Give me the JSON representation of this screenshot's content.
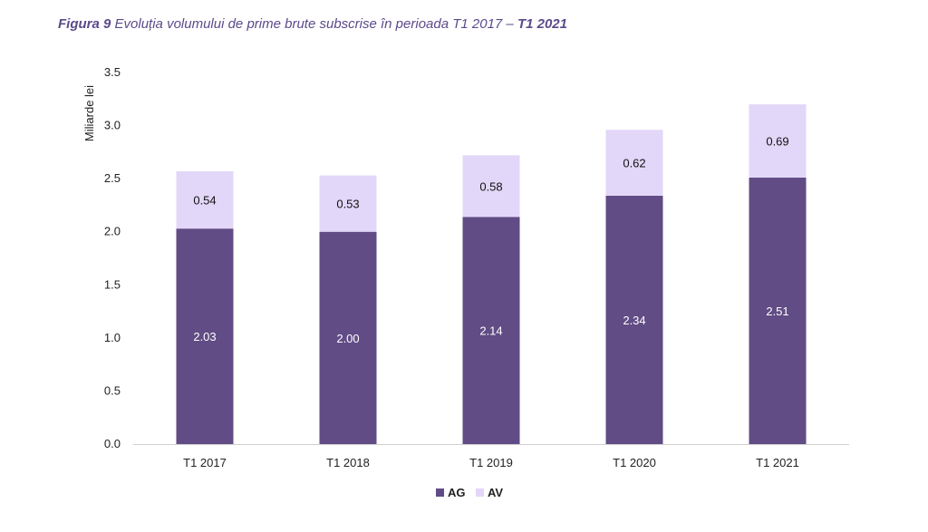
{
  "caption": {
    "figure_label": "Figura 9",
    "text_part1": "Evoluția volumului de prime brute subscrise în perioada T1 2017 –",
    "text_part2": "T1 2021"
  },
  "chart_data": {
    "type": "bar",
    "stacked": true,
    "title": "Figura 9 Evoluția volumului de prime brute subscrise în perioada T1 2017 – T1 2021",
    "categories": [
      "T1 2017",
      "T1 2018",
      "T1 2019",
      "T1 2020",
      "T1 2021"
    ],
    "series": [
      {
        "name": "AG",
        "color": "#614c85",
        "label_color": "#ffffff",
        "values": [
          2.03,
          2.0,
          2.14,
          2.34,
          2.51
        ],
        "labels": [
          "2.03",
          "2.00",
          "2.14",
          "2.34",
          "2.51"
        ]
      },
      {
        "name": "AV",
        "color": "#e2d7f8",
        "label_color": "#111111",
        "values": [
          0.54,
          0.53,
          0.58,
          0.62,
          0.69
        ],
        "labels": [
          "0.54",
          "0.53",
          "0.58",
          "0.62",
          "0.69"
        ]
      }
    ],
    "xlabel": "",
    "ylabel": "Miliarde lei",
    "ylim": [
      0,
      3.5
    ],
    "yticks": [
      "0.0",
      "0.5",
      "1.0",
      "1.5",
      "2.0",
      "2.5",
      "3.0",
      "3.5"
    ],
    "grid": false,
    "legend_position": "bottom-center"
  }
}
